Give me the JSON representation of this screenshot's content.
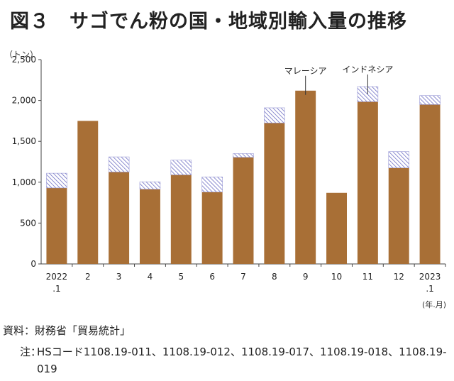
{
  "header": {
    "title": "図３　サゴでん粉の国・地域別輸入量の推移"
  },
  "chart_data": {
    "type": "bar",
    "stacked": true,
    "unit_label": "（トン）",
    "x_unit_label": "(年.月)",
    "categories": [
      "2022\n.1",
      "2",
      "3",
      "4",
      "5",
      "6",
      "7",
      "8",
      "9",
      "10",
      "11",
      "12",
      "2023\n.1"
    ],
    "series": [
      {
        "name": "マレーシア",
        "values": [
          930,
          1750,
          1125,
          915,
          1090,
          880,
          1305,
          1725,
          2120,
          870,
          1985,
          1175,
          1950
        ]
      },
      {
        "name": "インドネシア",
        "values": [
          180,
          0,
          185,
          90,
          180,
          185,
          45,
          185,
          0,
          0,
          185,
          200,
          110
        ]
      }
    ],
    "annotations": [
      {
        "text": "マレーシア",
        "series": 0,
        "category_index": 8
      },
      {
        "text": "インドネシア",
        "series": 1,
        "category_index": 10
      }
    ],
    "y_ticks": [
      "0",
      "500",
      "1,000",
      "1,500",
      "2,000",
      "2,500"
    ],
    "ylim": [
      0,
      2500
    ],
    "colors": {
      "malaysia": "#a86f36",
      "indonesia_hatch": "#6f6fc4"
    },
    "grid": false,
    "legend": "none"
  },
  "footer": {
    "source": "資料：財務省「貿易統計」",
    "note_label": "注：",
    "note_text": "HSコード1108.19-011、1108.19-012、1108.19-017、1108.19-018、1108.19-019"
  }
}
